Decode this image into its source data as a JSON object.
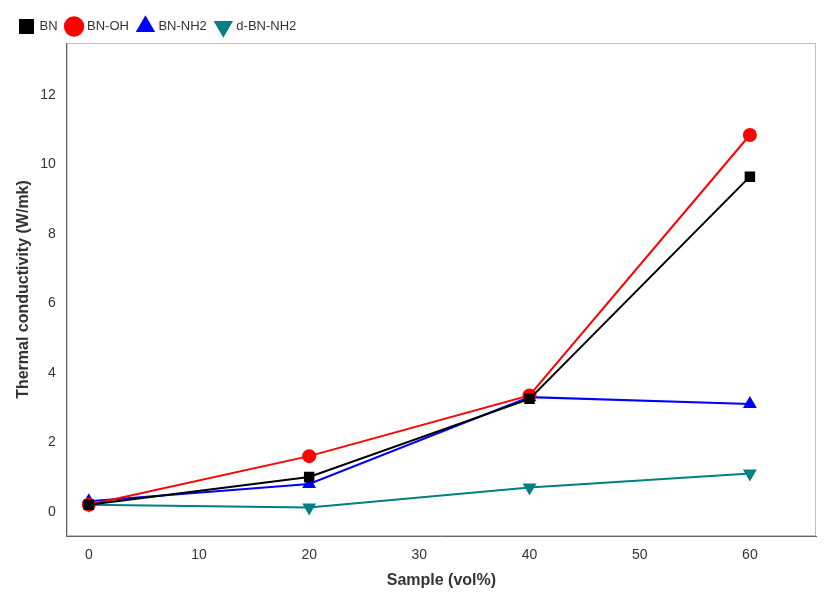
{
  "chart_data": {
    "type": "line",
    "xlabel": "Sample (vol%)",
    "ylabel": "Thermal conductivity (W/mk)",
    "x": [
      0,
      20,
      40,
      60
    ],
    "series": [
      {
        "name": "BN",
        "color": "#000000",
        "marker": "square",
        "values": [
          0.2,
          1.0,
          3.25,
          9.65
        ]
      },
      {
        "name": "BN-OH",
        "color": "#ff0000",
        "marker": "circle",
        "values": [
          0.2,
          1.6,
          3.35,
          10.85
        ]
      },
      {
        "name": "BN-NH2",
        "color": "#0000ff",
        "marker": "triangle-up",
        "values": [
          0.3,
          0.8,
          3.3,
          3.1
        ]
      },
      {
        "name": "d-BN-NH2",
        "color": "#008080",
        "marker": "triangle-down",
        "values": [
          0.2,
          0.12,
          0.7,
          1.1
        ]
      }
    ],
    "xlim": [
      -2,
      66
    ],
    "xticks": [
      0,
      10,
      20,
      30,
      40,
      50,
      60
    ],
    "ylim": [
      -0.7,
      13.5
    ],
    "yticks": [
      0,
      2,
      4,
      6,
      8,
      10,
      12
    ],
    "grid": false,
    "legend": "upper left"
  }
}
